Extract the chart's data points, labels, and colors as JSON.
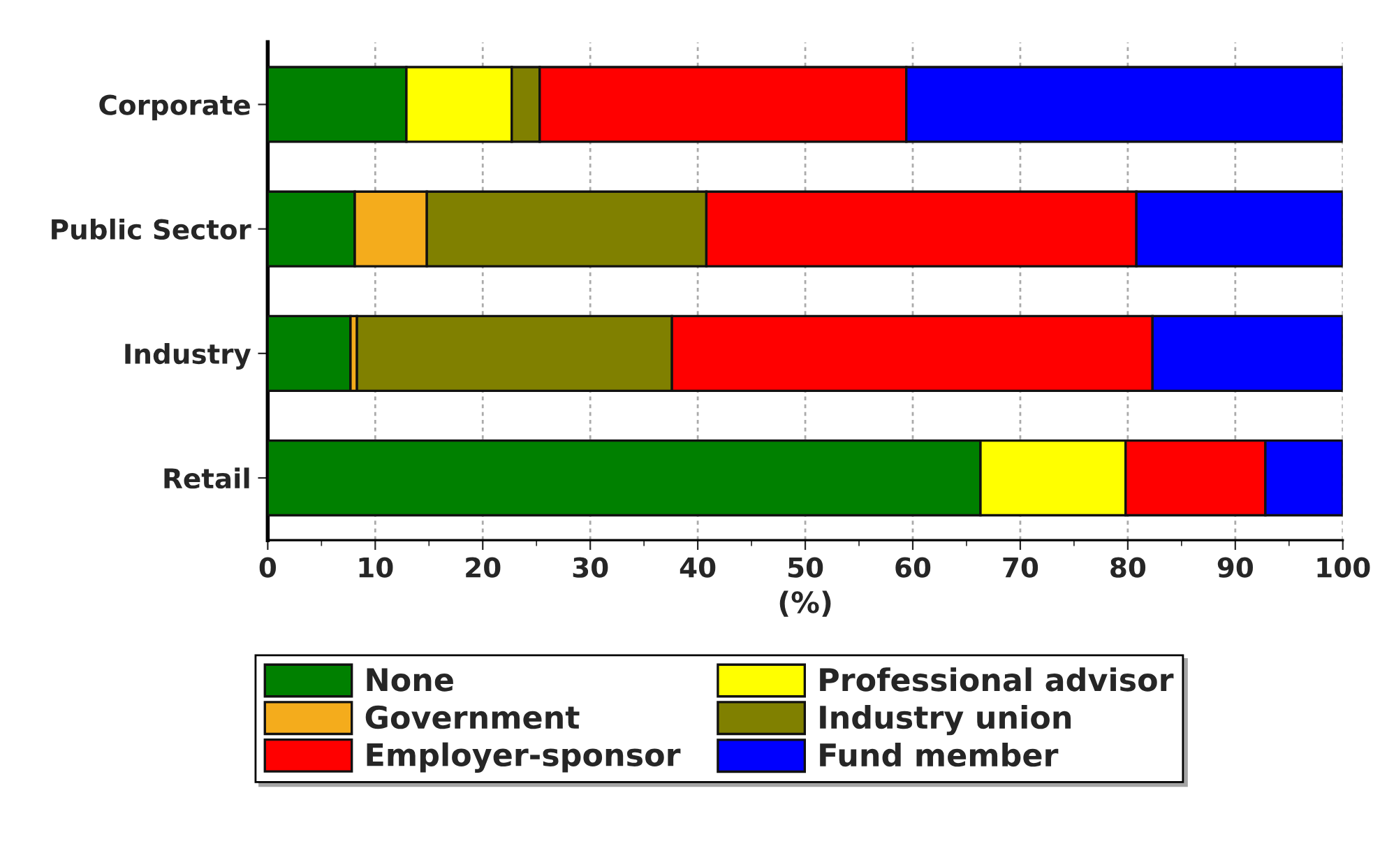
{
  "chart_data": {
    "type": "bar",
    "orientation": "horizontal",
    "stacked": true,
    "xlabel": "(%)",
    "categories": [
      "Corporate",
      "Public Sector",
      "Industry",
      "Retail"
    ],
    "series": [
      {
        "name": "None",
        "color": "#008000",
        "values": [
          12.9,
          8.1,
          7.7,
          66.3
        ]
      },
      {
        "name": "Professional advisor",
        "color": "#ffff00",
        "values": [
          9.8,
          0,
          0,
          13.5
        ]
      },
      {
        "name": "Government",
        "color": "#f4ac1c",
        "values": [
          null,
          6.7,
          0.6,
          null
        ]
      },
      {
        "name": "Industry union",
        "color": "#808000",
        "values": [
          2.6,
          26.0,
          29.3,
          0
        ]
      },
      {
        "name": "Employer-sponsor",
        "color": "#ff0000",
        "values": [
          34.1,
          40.0,
          44.7,
          13.0
        ]
      },
      {
        "name": "Fund member",
        "color": "#0000ff",
        "values": [
          40.6,
          19.2,
          17.7,
          7.2
        ]
      }
    ],
    "xlim": [
      0,
      100
    ],
    "xticks": [
      0,
      10,
      20,
      30,
      40,
      50,
      60,
      70,
      80,
      90,
      100
    ],
    "grid": "x",
    "legend": "bottom"
  }
}
